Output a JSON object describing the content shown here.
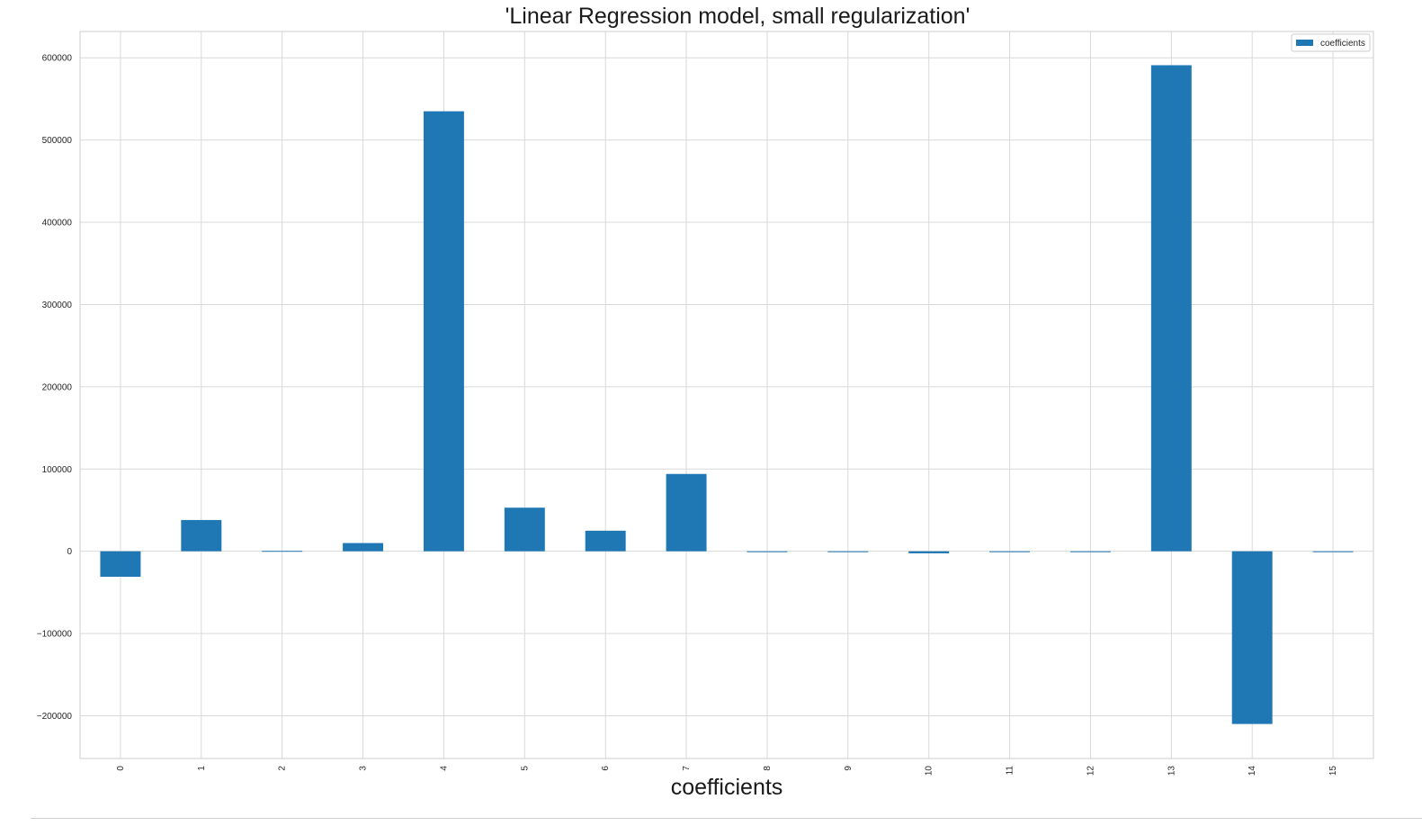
{
  "chart_data": {
    "type": "bar",
    "title": "'Linear Regression model, small regularization'",
    "xlabel": "coefficients",
    "ylabel": "",
    "categories": [
      "0",
      "1",
      "2",
      "3",
      "4",
      "5",
      "6",
      "7",
      "8",
      "9",
      "10",
      "11",
      "12",
      "13",
      "14",
      "15"
    ],
    "series": [
      {
        "name": "coefficients",
        "color": "#1f77b4",
        "values": [
          -31000,
          38000,
          500,
          10000,
          535000,
          53000,
          25000,
          94000,
          -400,
          -400,
          -2500,
          -400,
          -400,
          591000,
          -210000,
          -400
        ]
      }
    ],
    "ylim": [
      -252000,
      632000
    ],
    "yticks": [
      -200000,
      -100000,
      0,
      100000,
      200000,
      300000,
      400000,
      500000,
      600000
    ],
    "ytick_labels": [
      "−200000",
      "−100000",
      "0",
      "100000",
      "200000",
      "300000",
      "400000",
      "500000",
      "600000"
    ],
    "grid": true,
    "legend_position": "top-right"
  }
}
